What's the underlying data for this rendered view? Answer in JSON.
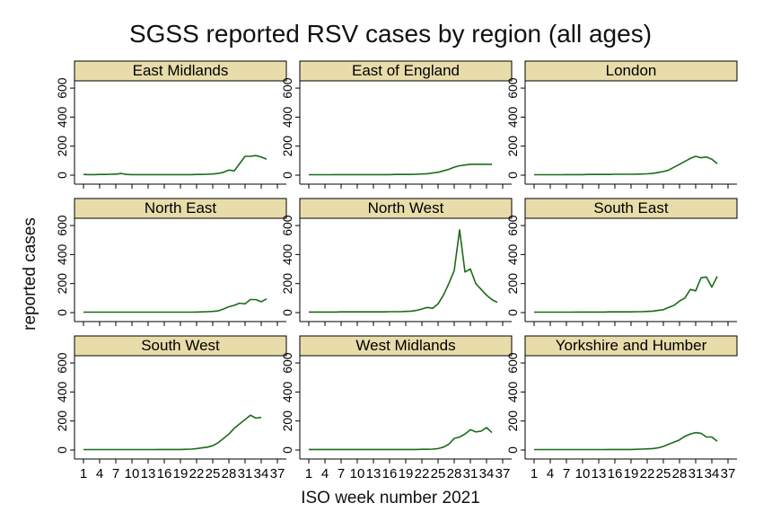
{
  "chart_data": {
    "type": "line",
    "title": "SGSS reported RSV cases by region (all ages)",
    "xlabel": "ISO week number 2021",
    "ylabel": "reported cases",
    "x_ticks": [
      1,
      4,
      7,
      10,
      13,
      16,
      19,
      22,
      25,
      28,
      31,
      34,
      37
    ],
    "x_tick_labels": [
      "1",
      "4",
      "7",
      "10",
      "13",
      "16",
      "19",
      "22",
      "25",
      "28",
      "31",
      "34",
      "37"
    ],
    "y_ticks": [
      0,
      200,
      400,
      600
    ],
    "y_tick_labels": [
      "0",
      "200",
      "400",
      "600"
    ],
    "xlim": [
      1,
      37
    ],
    "ylim": [
      0,
      650
    ],
    "line_color": "#1a6b1a",
    "strip_color": "#e8dcaa",
    "grid": false,
    "x": [
      1,
      2,
      3,
      4,
      5,
      6,
      7,
      8,
      9,
      10,
      11,
      12,
      13,
      14,
      15,
      16,
      17,
      18,
      19,
      20,
      21,
      22,
      23,
      24,
      25,
      26,
      27,
      28,
      29,
      30,
      31,
      32,
      33,
      34,
      35,
      36,
      37
    ],
    "panels": [
      {
        "name": "East Midlands",
        "values": [
          5,
          4,
          4,
          5,
          5,
          6,
          7,
          12,
          5,
          4,
          4,
          4,
          4,
          4,
          4,
          4,
          4,
          4,
          4,
          4,
          4,
          5,
          5,
          6,
          8,
          12,
          20,
          35,
          30,
          80,
          130,
          130,
          135,
          125,
          110,
          null,
          null
        ]
      },
      {
        "name": "East of England",
        "values": [
          3,
          3,
          3,
          3,
          3,
          4,
          4,
          4,
          4,
          4,
          4,
          4,
          4,
          4,
          4,
          4,
          5,
          5,
          5,
          5,
          6,
          8,
          10,
          15,
          20,
          30,
          40,
          55,
          65,
          70,
          75,
          75,
          75,
          75,
          75,
          null,
          null
        ]
      },
      {
        "name": "London",
        "values": [
          3,
          3,
          3,
          3,
          3,
          3,
          4,
          4,
          4,
          4,
          5,
          5,
          5,
          5,
          5,
          6,
          6,
          6,
          6,
          7,
          8,
          9,
          12,
          18,
          25,
          35,
          55,
          75,
          95,
          115,
          130,
          120,
          125,
          110,
          80,
          null,
          null
        ]
      },
      {
        "name": "North East",
        "values": [
          3,
          3,
          3,
          3,
          3,
          3,
          3,
          3,
          3,
          3,
          3,
          3,
          3,
          3,
          3,
          3,
          3,
          3,
          3,
          3,
          3,
          4,
          5,
          6,
          8,
          12,
          25,
          40,
          50,
          65,
          60,
          90,
          90,
          75,
          95,
          null,
          null
        ]
      },
      {
        "name": "North West",
        "values": [
          4,
          4,
          4,
          4,
          4,
          4,
          5,
          5,
          5,
          5,
          5,
          5,
          5,
          5,
          5,
          6,
          6,
          6,
          8,
          10,
          15,
          25,
          35,
          30,
          60,
          120,
          200,
          290,
          570,
          280,
          300,
          200,
          160,
          120,
          90,
          70,
          null
        ]
      },
      {
        "name": "South East",
        "values": [
          3,
          3,
          3,
          3,
          3,
          3,
          3,
          3,
          4,
          4,
          4,
          4,
          4,
          4,
          5,
          5,
          5,
          5,
          5,
          6,
          6,
          8,
          10,
          15,
          20,
          35,
          50,
          80,
          100,
          160,
          150,
          240,
          245,
          175,
          250,
          null,
          null
        ]
      },
      {
        "name": "South West",
        "values": [
          3,
          3,
          3,
          3,
          3,
          3,
          3,
          3,
          3,
          3,
          3,
          3,
          3,
          3,
          4,
          4,
          4,
          4,
          4,
          5,
          6,
          10,
          15,
          20,
          30,
          50,
          80,
          110,
          150,
          180,
          210,
          240,
          220,
          225,
          null,
          null,
          null
        ]
      },
      {
        "name": "West Midlands",
        "values": [
          4,
          4,
          4,
          4,
          4,
          4,
          4,
          4,
          4,
          4,
          4,
          4,
          4,
          4,
          4,
          4,
          4,
          4,
          4,
          4,
          4,
          5,
          5,
          6,
          10,
          20,
          40,
          80,
          90,
          110,
          140,
          125,
          130,
          155,
          120,
          null,
          null
        ]
      },
      {
        "name": "Yorkshire and Humber",
        "values": [
          3,
          3,
          3,
          3,
          3,
          3,
          3,
          3,
          3,
          3,
          3,
          3,
          3,
          3,
          4,
          4,
          4,
          4,
          4,
          5,
          6,
          8,
          10,
          15,
          25,
          40,
          55,
          70,
          95,
          110,
          120,
          115,
          90,
          90,
          60,
          null,
          null
        ]
      }
    ]
  }
}
